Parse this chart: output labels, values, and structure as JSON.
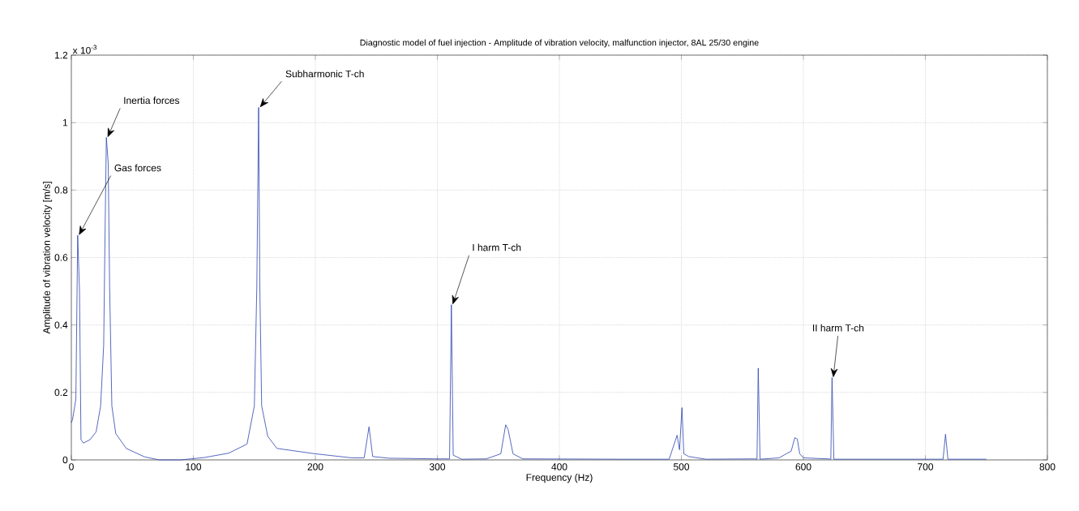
{
  "chart_data": {
    "type": "line",
    "title": "Diagnostic model of fuel injection - Amplitude of vibration velocity, malfunction injector, 8AL 25/30 engine",
    "xlabel": "Frequency (Hz)",
    "ylabel": "Amplitude of vibration velocity [m/s]",
    "series": [
      {
        "color": "#2b44b0",
        "x": [
          0,
          1,
          3.7,
          5.2,
          6.7,
          7.9,
          9.9,
          15.3,
          20.3,
          24,
          26.5,
          27.7,
          28.7,
          30.2,
          31.4,
          33.2,
          36.4,
          45,
          60,
          72,
          89.6,
          109,
          129,
          144,
          150,
          152,
          153.5,
          154.5,
          156,
          161,
          168.5,
          200,
          230,
          240,
          244,
          247,
          260,
          300,
          310,
          311.5,
          313,
          320,
          340,
          352,
          356,
          358,
          362,
          370,
          450,
          490,
          496.5,
          498.5,
          500.5,
          502,
          506,
          520,
          560,
          562,
          563,
          564.5,
          580,
          590,
          593,
          595,
          597,
          600,
          620,
          622.5,
          623.5,
          625,
          650,
          714.5,
          716.5,
          718.5,
          750
        ],
        "values": [
          0.11,
          0.12,
          0.18,
          0.666,
          0.5,
          0.06,
          0.05,
          0.06,
          0.083,
          0.16,
          0.34,
          0.69,
          0.956,
          0.88,
          0.51,
          0.16,
          0.078,
          0.034,
          0.009,
          0.0,
          0.0,
          0.007,
          0.02,
          0.047,
          0.16,
          0.51,
          1.045,
          0.51,
          0.16,
          0.07,
          0.034,
          0.018,
          0.006,
          0.006,
          0.098,
          0.01,
          0.005,
          0.003,
          0.003,
          0.46,
          0.014,
          0.002,
          0.003,
          0.018,
          0.104,
          0.09,
          0.018,
          0.003,
          0.002,
          0.002,
          0.073,
          0.03,
          0.155,
          0.018,
          0.01,
          0.002,
          0.003,
          0.002,
          0.272,
          0.002,
          0.006,
          0.026,
          0.066,
          0.062,
          0.018,
          0.006,
          0.003,
          0.002,
          0.244,
          0.002,
          0.002,
          0.002,
          0.076,
          0.002,
          0.002
        ]
      }
    ],
    "xlim": [
      0,
      800
    ],
    "xticks": [
      0,
      100,
      200,
      300,
      400,
      500,
      600,
      700,
      800
    ],
    "ylim": [
      0,
      1.2
    ],
    "yticks": [
      0,
      0.2,
      0.4,
      0.6,
      0.8,
      1,
      1.2
    ],
    "grid": true,
    "annotations": [
      "x 10$^{-3}$",
      {
        "text": "Gas forces",
        "x": 5.2,
        "y": 0.666
      },
      {
        "text": "Inertia forces",
        "x": 28.7,
        "y": 0.956
      },
      {
        "text": "Subharmonic T-ch",
        "x": 153.5,
        "y": 1.045
      },
      {
        "text": "I harm T-ch",
        "x": 311.5,
        "y": 0.46
      },
      {
        "text": "II harm T-ch",
        "x": 623.5,
        "y": 0.244
      }
    ]
  }
}
